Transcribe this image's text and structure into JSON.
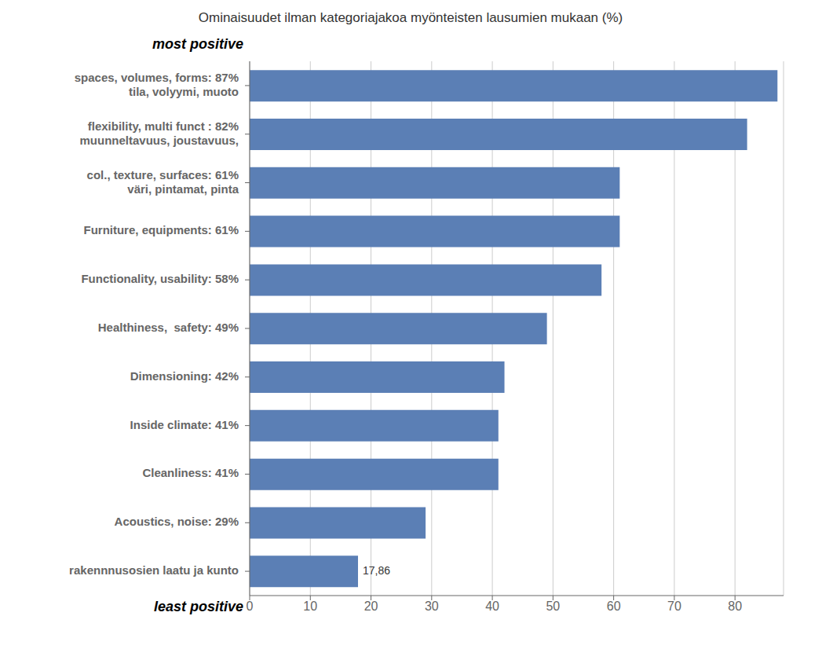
{
  "chart_data": {
    "type": "bar",
    "orientation": "horizontal",
    "title": "Ominaisuudet ilman kategoriajakoa myönteisten lausumien mukaan (%)",
    "categories": [
      "spaces, volumes, forms: 87%\ntila, volyymi, muoto",
      "flexibility, multi funct : 82%\nmuunneltavuus, joustavuus,",
      "col., texture, surfaces: 61%\nväri, pintamat, pinta",
      "Furniture, equipments: 61%",
      "Functionality, usability: 58%",
      "Healthiness,  safety: 49%",
      "Dimensioning: 42%",
      "Inside climate: 41%",
      "Cleanliness: 41%",
      "Acoustics, noise: 29%",
      "rakennnusosien laatu ja kunto"
    ],
    "values": [
      87,
      82,
      61,
      61,
      58,
      49,
      42,
      41,
      41,
      29,
      17.86
    ],
    "color": "#5b7fb5",
    "xlim": [
      0,
      88
    ],
    "xticks": [
      0,
      10,
      20,
      30,
      40,
      50,
      60,
      70,
      80
    ],
    "grid": true,
    "annotations": [
      {
        "text": "17,86",
        "category": "rakennnusosien laatu ja kunto",
        "value": 17.86
      },
      {
        "text": "most positive",
        "category": "spaces, volumes, forms: 87%\ntila, volyymi, muoto"
      },
      {
        "text": "least positive",
        "category": "rakennnusosien laatu ja kunto"
      }
    ]
  }
}
